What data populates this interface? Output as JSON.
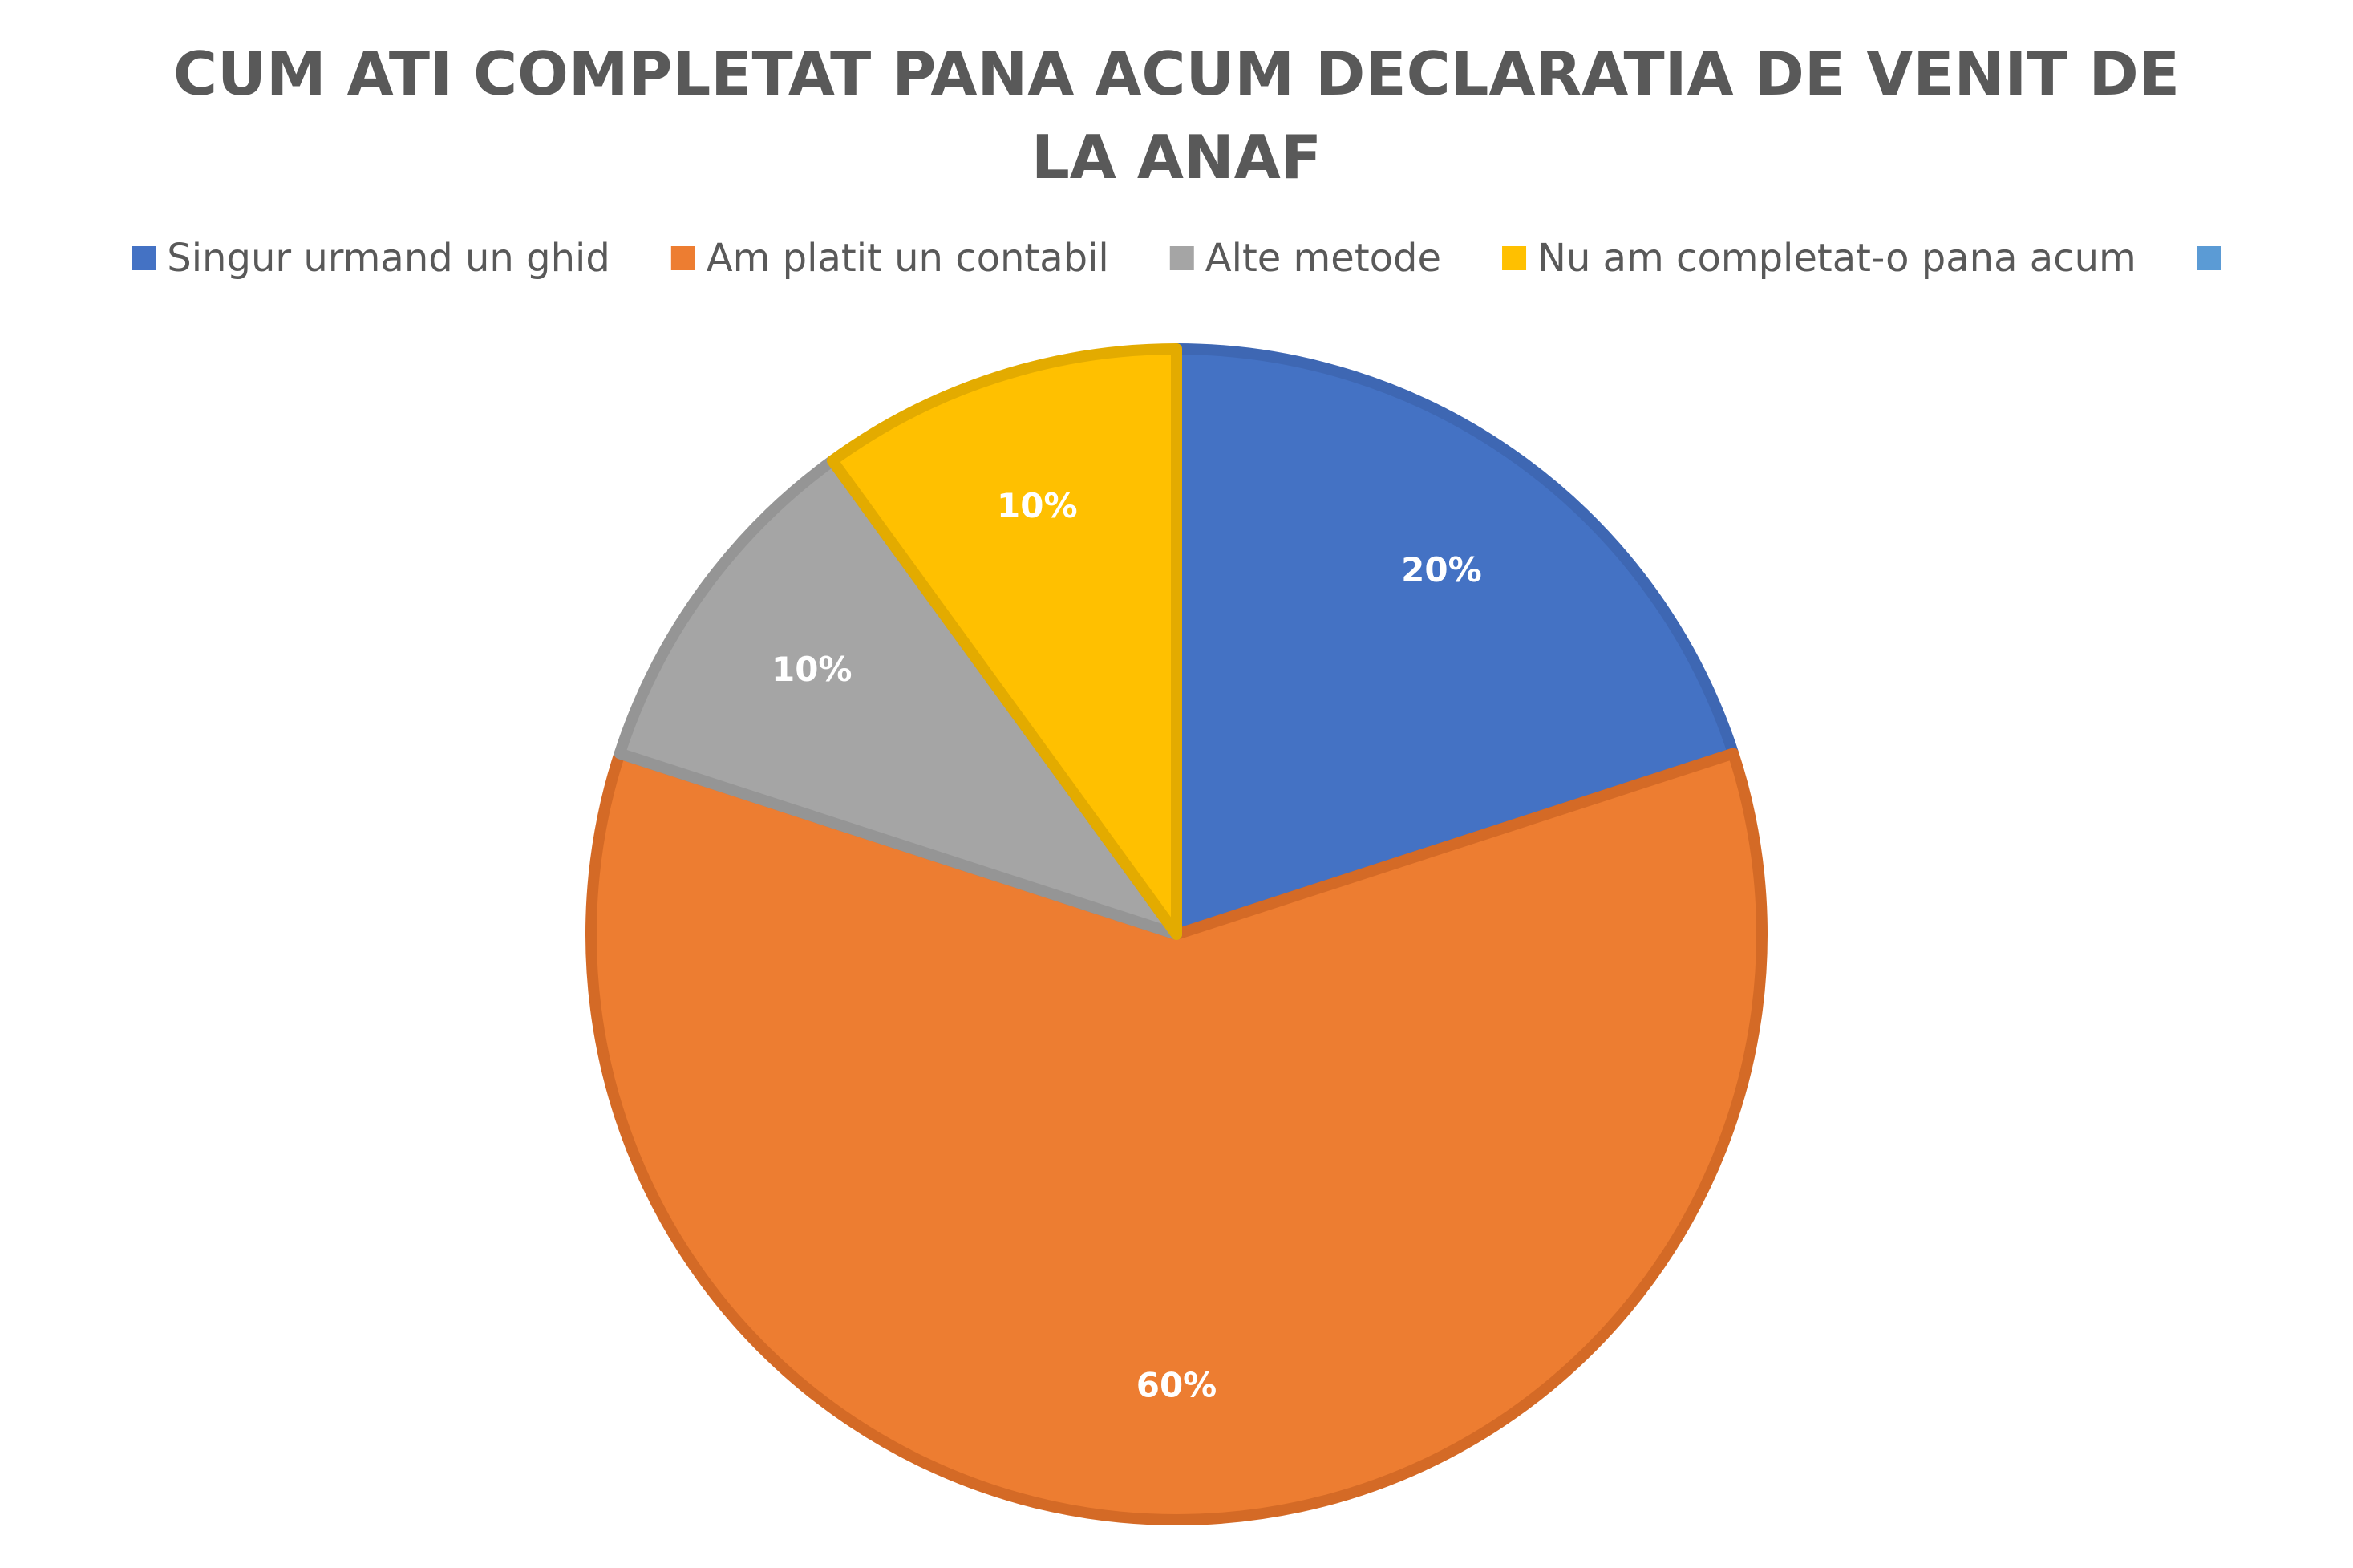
{
  "chart_data": {
    "type": "pie",
    "title_lines": [
      "CUM ATI COMPLETAT PANA ACUM DECLARATIA DE VENIT DE",
      "LA ANAF"
    ],
    "categories": [
      "Singur urmand un ghid",
      "Am platit un contabil",
      "Alte metode",
      "Nu am completat-o pana acum",
      ""
    ],
    "values": [
      20,
      60,
      10,
      10,
      0
    ],
    "data_labels": [
      "20%",
      "60%",
      "10%",
      "10%",
      ""
    ],
    "colors": [
      "#4472C4",
      "#ED7D31",
      "#A5A5A5",
      "#FFC000",
      "#5B9BD5"
    ],
    "border_colors": [
      "#3E67B3",
      "#D46A26",
      "#959595",
      "#E3AB00",
      "#5B9BD5"
    ],
    "legend_position": "top",
    "start_angle_deg": 0,
    "direction": "clockwise"
  }
}
